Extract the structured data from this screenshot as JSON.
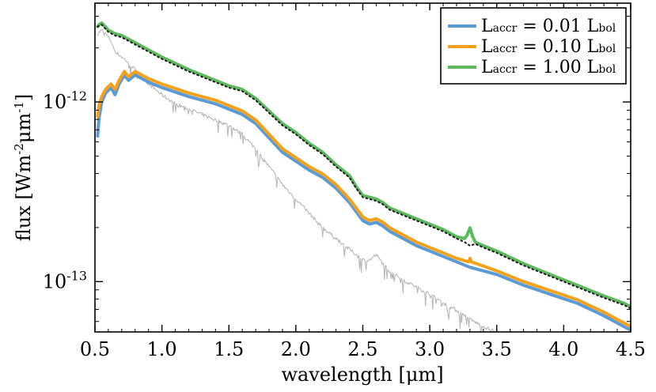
{
  "chart_data": {
    "type": "line",
    "title": "",
    "xlabel": "wavelength [μm]",
    "ylabel_main": "flux [Wm",
    "ylabel_exp1": "-2",
    "ylabel_mid": "μm",
    "ylabel_exp2": "-1",
    "ylabel_end": "]",
    "xlim": [
      0.5,
      4.5
    ],
    "ylim_log10": [
      -13.28,
      -11.45
    ],
    "yscale": "log",
    "xticks": [
      {
        "value": 0.5,
        "label": "0.5"
      },
      {
        "value": 1.0,
        "label": "1.0"
      },
      {
        "value": 1.5,
        "label": "1.5"
      },
      {
        "value": 2.0,
        "label": "2.0"
      },
      {
        "value": 2.5,
        "label": "2.5"
      },
      {
        "value": 3.0,
        "label": "3.0"
      },
      {
        "value": 3.5,
        "label": "3.5"
      },
      {
        "value": 4.0,
        "label": "4.0"
      },
      {
        "value": 4.5,
        "label": "4.5"
      }
    ],
    "yticks": [
      {
        "log10": -12,
        "base": "10",
        "exp": "-12"
      },
      {
        "log10": -13,
        "base": "10",
        "exp": "-13"
      }
    ],
    "legend_position": "top-right",
    "series": [
      {
        "name": "blue",
        "legend_main": "L",
        "legend_sub": "accr",
        "legend_value": " = 0.01 L",
        "legend_sub2": "bol",
        "color": "#5b9bd5",
        "x": [
          0.52,
          0.53,
          0.55,
          0.58,
          0.62,
          0.65,
          0.68,
          0.72,
          0.75,
          0.8,
          0.9,
          1.0,
          1.2,
          1.4,
          1.5,
          1.6,
          1.7,
          1.8,
          1.9,
          2.0,
          2.1,
          2.2,
          2.3,
          2.4,
          2.45,
          2.5,
          2.55,
          2.6,
          2.65,
          2.7,
          2.8,
          2.9,
          3.0,
          3.2,
          3.3,
          3.5,
          3.7,
          3.9,
          4.1,
          4.3,
          4.45,
          4.5
        ],
        "y_log10": [
          -12.19,
          -12.09,
          -12.0,
          -11.95,
          -11.92,
          -11.96,
          -11.9,
          -11.85,
          -11.88,
          -11.85,
          -11.89,
          -11.92,
          -11.97,
          -12.01,
          -12.04,
          -12.07,
          -12.12,
          -12.2,
          -12.28,
          -12.33,
          -12.38,
          -12.42,
          -12.48,
          -12.56,
          -12.61,
          -12.66,
          -12.68,
          -12.67,
          -12.69,
          -12.72,
          -12.76,
          -12.8,
          -12.83,
          -12.89,
          -12.92,
          -12.96,
          -13.02,
          -13.07,
          -13.12,
          -13.19,
          -13.25,
          -13.27
        ]
      },
      {
        "name": "orange",
        "legend_main": "L",
        "legend_sub": "accr",
        "legend_value": " = 0.10 L",
        "legend_sub2": "bol",
        "color": "#f5a11c",
        "x": [
          0.52,
          0.53,
          0.55,
          0.58,
          0.62,
          0.65,
          0.68,
          0.72,
          0.75,
          0.8,
          0.9,
          1.0,
          1.2,
          1.4,
          1.5,
          1.6,
          1.7,
          1.8,
          1.9,
          2.0,
          2.1,
          2.2,
          2.3,
          2.4,
          2.45,
          2.5,
          2.55,
          2.6,
          2.65,
          2.7,
          2.8,
          2.9,
          3.0,
          3.2,
          3.29,
          3.3,
          3.31,
          3.5,
          3.7,
          3.9,
          4.1,
          4.3,
          4.45,
          4.5
        ],
        "y_log10": [
          -12.08,
          -12.02,
          -11.97,
          -11.93,
          -11.9,
          -11.93,
          -11.88,
          -11.83,
          -11.86,
          -11.83,
          -11.87,
          -11.9,
          -11.95,
          -11.99,
          -12.02,
          -12.05,
          -12.1,
          -12.18,
          -12.26,
          -12.31,
          -12.36,
          -12.4,
          -12.46,
          -12.54,
          -12.59,
          -12.64,
          -12.66,
          -12.65,
          -12.67,
          -12.7,
          -12.74,
          -12.78,
          -12.81,
          -12.87,
          -12.89,
          -12.87,
          -12.89,
          -12.94,
          -13.0,
          -13.05,
          -13.1,
          -13.17,
          -13.23,
          -13.25
        ]
      },
      {
        "name": "green",
        "legend_main": "L",
        "legend_sub": "accr",
        "legend_value": " = 1.00 L",
        "legend_sub2": "bol",
        "color": "#5cba5c",
        "x": [
          0.52,
          0.53,
          0.55,
          0.6,
          0.65,
          0.7,
          0.75,
          0.8,
          0.9,
          1.0,
          1.2,
          1.4,
          1.5,
          1.6,
          1.7,
          1.8,
          1.9,
          2.0,
          2.1,
          2.2,
          2.3,
          2.4,
          2.45,
          2.5,
          2.55,
          2.6,
          2.65,
          2.7,
          2.8,
          2.9,
          3.0,
          3.1,
          3.2,
          3.26,
          3.28,
          3.3,
          3.32,
          3.34,
          3.4,
          3.5,
          3.7,
          3.9,
          4.1,
          4.3,
          4.45,
          4.5
        ],
        "y_log10": [
          -11.58,
          -11.57,
          -11.56,
          -11.6,
          -11.62,
          -11.63,
          -11.65,
          -11.67,
          -11.71,
          -11.75,
          -11.82,
          -11.88,
          -11.91,
          -11.93,
          -11.98,
          -12.05,
          -12.12,
          -12.17,
          -12.23,
          -12.28,
          -12.35,
          -12.41,
          -12.47,
          -12.52,
          -12.53,
          -12.54,
          -12.56,
          -12.59,
          -12.62,
          -12.65,
          -12.68,
          -12.71,
          -12.75,
          -12.76,
          -12.74,
          -12.7,
          -12.75,
          -12.78,
          -12.8,
          -12.83,
          -12.9,
          -12.96,
          -13.02,
          -13.08,
          -13.12,
          -13.14
        ]
      },
      {
        "name": "black-dotted",
        "color": "#222222",
        "style": "dotted",
        "x": [
          0.52,
          0.55,
          0.6,
          0.65,
          0.7,
          0.75,
          0.8,
          0.9,
          1.0,
          1.2,
          1.4,
          1.5,
          1.6,
          1.7,
          1.8,
          1.9,
          2.0,
          2.1,
          2.2,
          2.3,
          2.4,
          2.45,
          2.5,
          2.55,
          2.6,
          2.65,
          2.7,
          2.8,
          2.9,
          3.0,
          3.1,
          3.2,
          3.26,
          3.3,
          3.34,
          3.4,
          3.5,
          3.7,
          3.9,
          4.1,
          4.3,
          4.45,
          4.5
        ],
        "y_log10": [
          -11.58,
          -11.57,
          -11.61,
          -11.63,
          -11.64,
          -11.66,
          -11.68,
          -11.72,
          -11.76,
          -11.83,
          -11.89,
          -11.92,
          -11.94,
          -11.99,
          -12.06,
          -12.13,
          -12.18,
          -12.24,
          -12.29,
          -12.36,
          -12.42,
          -12.48,
          -12.53,
          -12.54,
          -12.55,
          -12.57,
          -12.6,
          -12.63,
          -12.66,
          -12.69,
          -12.72,
          -12.76,
          -12.78,
          -12.8,
          -12.79,
          -12.81,
          -12.84,
          -12.91,
          -12.97,
          -13.03,
          -13.09,
          -13.13,
          -13.15
        ]
      },
      {
        "name": "grey-photosphere",
        "color": "#b8b8b8",
        "style": "noisy",
        "x": [
          0.52,
          0.55,
          0.58,
          0.62,
          0.65,
          0.7,
          0.75,
          0.8,
          0.9,
          1.0,
          1.1,
          1.2,
          1.3,
          1.4,
          1.5,
          1.6,
          1.7,
          1.8,
          1.9,
          2.0,
          2.1,
          2.2,
          2.3,
          2.4,
          2.5,
          2.55,
          2.6,
          2.65,
          2.7,
          2.8,
          2.9,
          3.0,
          3.1,
          3.2,
          3.3,
          3.4,
          3.5
        ],
        "y_log10": [
          -11.62,
          -11.6,
          -11.62,
          -11.66,
          -11.72,
          -11.75,
          -11.78,
          -11.82,
          -11.9,
          -11.96,
          -12.01,
          -12.04,
          -12.07,
          -12.1,
          -12.13,
          -12.18,
          -12.26,
          -12.36,
          -12.46,
          -12.54,
          -12.62,
          -12.7,
          -12.76,
          -12.82,
          -12.88,
          -12.88,
          -12.85,
          -12.9,
          -12.94,
          -12.99,
          -13.03,
          -13.07,
          -13.12,
          -13.16,
          -13.21,
          -13.25,
          -13.28
        ]
      }
    ]
  }
}
